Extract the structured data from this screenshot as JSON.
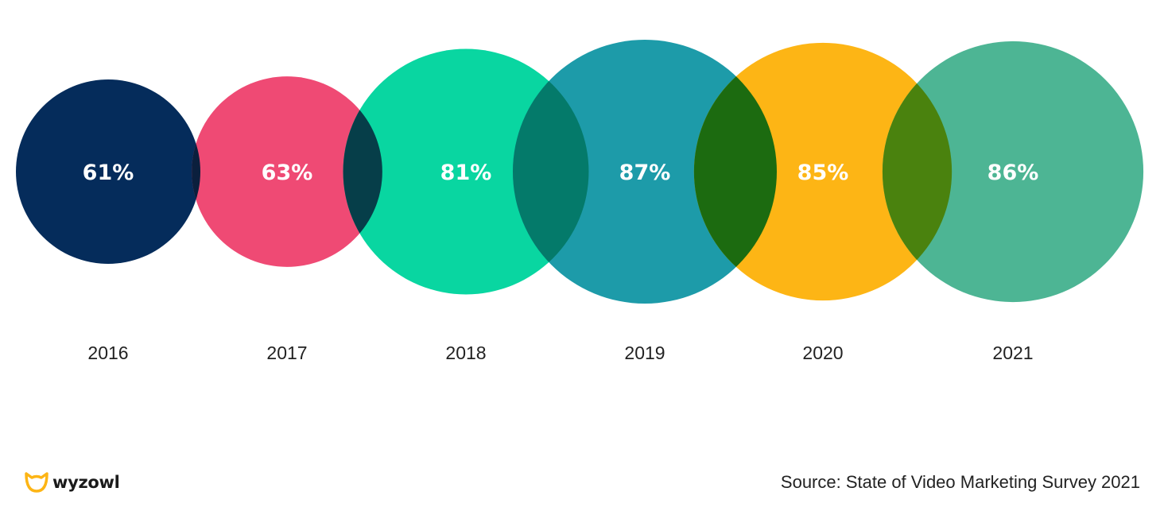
{
  "chart_data": {
    "type": "bubble",
    "categories": [
      "2016",
      "2017",
      "2018",
      "2019",
      "2020",
      "2021"
    ],
    "values": [
      61,
      63,
      81,
      87,
      85,
      86
    ],
    "labels": [
      "61%",
      "63%",
      "81%",
      "87%",
      "85%",
      "86%"
    ],
    "colors": [
      "#052c5b",
      "#ef4a74",
      "#09d6a1",
      "#1d9ba9",
      "#fdb515",
      "#4db594"
    ],
    "overlap_colors": [
      "#0b1f3d",
      "#063e49",
      "#047a6a",
      "#1c6b10",
      "#4a820e"
    ]
  },
  "footer": {
    "logo_text": "wyzowl",
    "logo_icon": "wyzowl-owl-icon",
    "source": "Source: State of Video Marketing Survey 2021"
  }
}
